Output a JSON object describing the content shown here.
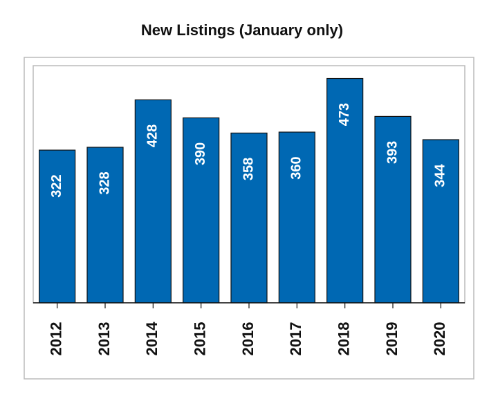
{
  "chart_data": {
    "type": "bar",
    "title": "New Listings (January only)",
    "categories": [
      "2012",
      "2013",
      "2014",
      "2015",
      "2016",
      "2017",
      "2018",
      "2019",
      "2020"
    ],
    "values": [
      322,
      328,
      428,
      390,
      358,
      360,
      473,
      393,
      344
    ],
    "color": "#0068b3",
    "ylim": [
      0,
      500
    ]
  }
}
